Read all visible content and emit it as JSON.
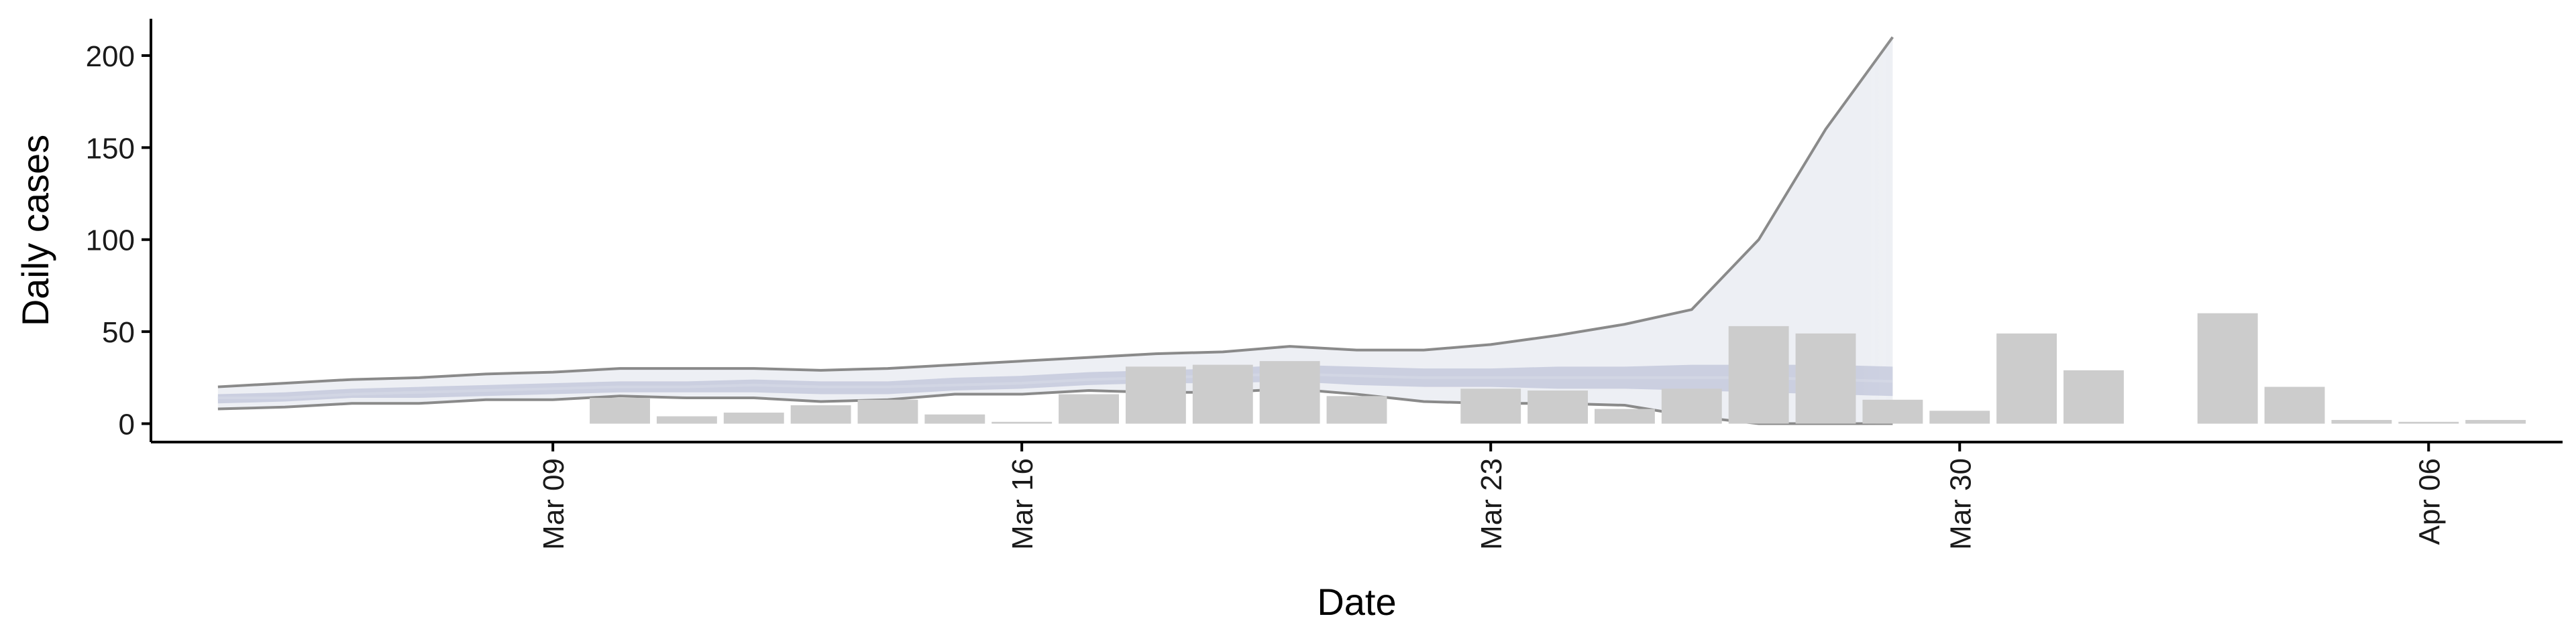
{
  "chart_data": {
    "type": "bar",
    "xlabel": "Date",
    "ylabel": "Daily cases",
    "x_type": "date",
    "xlim": [
      "2020-03-03",
      "2020-04-08"
    ],
    "ylim": [
      -10,
      220
    ],
    "y_ticks": [
      0,
      50,
      100,
      150,
      200
    ],
    "x_ticks": [
      {
        "date": "2020-03-09",
        "label": "Mar 09"
      },
      {
        "date": "2020-03-16",
        "label": "Mar 16"
      },
      {
        "date": "2020-03-23",
        "label": "Mar 23"
      },
      {
        "date": "2020-03-30",
        "label": "Mar 30"
      },
      {
        "date": "2020-04-06",
        "label": "Apr 06"
      }
    ],
    "bars": [
      {
        "date": "2020-03-10",
        "value": 14
      },
      {
        "date": "2020-03-11",
        "value": 4
      },
      {
        "date": "2020-03-12",
        "value": 6
      },
      {
        "date": "2020-03-13",
        "value": 10
      },
      {
        "date": "2020-03-14",
        "value": 13
      },
      {
        "date": "2020-03-15",
        "value": 5
      },
      {
        "date": "2020-03-16",
        "value": 1
      },
      {
        "date": "2020-03-17",
        "value": 16
      },
      {
        "date": "2020-03-18",
        "value": 31
      },
      {
        "date": "2020-03-19",
        "value": 32
      },
      {
        "date": "2020-03-20",
        "value": 34
      },
      {
        "date": "2020-03-21",
        "value": 15
      },
      {
        "date": "2020-03-23",
        "value": 19
      },
      {
        "date": "2020-03-24",
        "value": 18
      },
      {
        "date": "2020-03-25",
        "value": 8
      },
      {
        "date": "2020-03-26",
        "value": 19
      },
      {
        "date": "2020-03-27",
        "value": 53
      },
      {
        "date": "2020-03-28",
        "value": 49
      },
      {
        "date": "2020-03-29",
        "value": 13
      },
      {
        "date": "2020-03-30",
        "value": 7
      },
      {
        "date": "2020-03-31",
        "value": 49
      },
      {
        "date": "2020-04-01",
        "value": 29
      },
      {
        "date": "2020-04-03",
        "value": 60
      },
      {
        "date": "2020-04-04",
        "value": 20
      },
      {
        "date": "2020-04-05",
        "value": 2
      },
      {
        "date": "2020-04-06",
        "value": 1
      },
      {
        "date": "2020-04-07",
        "value": 2
      }
    ],
    "estimate_bands": {
      "dates": [
        "2020-03-04",
        "2020-03-05",
        "2020-03-06",
        "2020-03-07",
        "2020-03-08",
        "2020-03-09",
        "2020-03-10",
        "2020-03-11",
        "2020-03-12",
        "2020-03-13",
        "2020-03-14",
        "2020-03-15",
        "2020-03-16",
        "2020-03-17",
        "2020-03-18",
        "2020-03-19",
        "2020-03-20",
        "2020-03-21",
        "2020-03-22",
        "2020-03-23",
        "2020-03-24",
        "2020-03-25",
        "2020-03-26",
        "2020-03-27",
        "2020-03-28",
        "2020-03-29"
      ],
      "outer_upper": [
        20,
        22,
        24,
        25,
        27,
        28,
        30,
        30,
        30,
        29,
        30,
        32,
        34,
        36,
        38,
        39,
        42,
        40,
        40,
        43,
        48,
        54,
        62,
        100,
        160,
        210
      ],
      "outer_lower": [
        8,
        9,
        11,
        11,
        13,
        13,
        15,
        14,
        14,
        12,
        13,
        16,
        16,
        18,
        17,
        17,
        19,
        16,
        12,
        11,
        11,
        10,
        4,
        0,
        0,
        0
      ],
      "inner_upper": [
        16,
        17,
        19,
        20,
        21,
        22,
        23,
        23,
        24,
        23,
        23,
        25,
        26,
        28,
        29,
        30,
        32,
        31,
        30,
        30,
        31,
        31,
        32,
        32,
        32,
        31
      ],
      "inner_lower": [
        11,
        12,
        14,
        14,
        15,
        16,
        17,
        17,
        17,
        16,
        16,
        18,
        19,
        21,
        22,
        22,
        23,
        21,
        20,
        20,
        19,
        19,
        18,
        17,
        16,
        15
      ],
      "median": [
        14,
        14,
        16,
        17,
        18,
        19,
        20,
        20,
        21,
        20,
        20,
        21,
        22,
        24,
        25,
        26,
        27,
        26,
        25,
        25,
        25,
        25,
        25,
        25,
        24,
        23
      ]
    },
    "colors": {
      "bar": "#cccccc",
      "band_line": "#8a8a8a",
      "band_inner": "#c5cadd",
      "band_outer": "#e6e8f0",
      "axis": "#000000"
    }
  }
}
